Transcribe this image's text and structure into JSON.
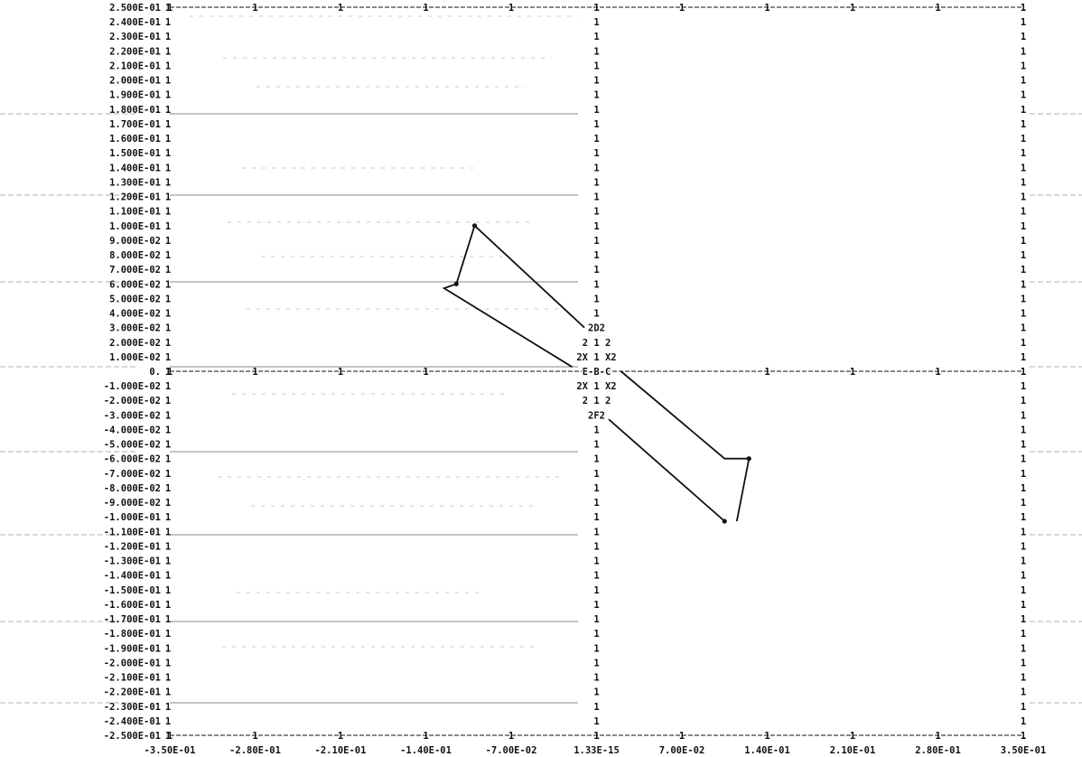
{
  "chart_data": {
    "type": "line",
    "title": "",
    "xlabel": "",
    "ylabel": "",
    "xlim": [
      -0.35,
      0.35
    ],
    "ylim": [
      -0.25,
      0.25
    ],
    "grid": false,
    "x_tick_labels": [
      "-3.50E-01",
      "-2.80E-01",
      "-2.10E-01",
      "-1.40E-01",
      "-7.00E-02",
      "1.33E-15",
      "7.00E-02",
      "1.40E-01",
      "2.10E-01",
      "2.80E-01",
      "3.50E-01"
    ],
    "y_tick_labels": [
      "2.500E-01",
      "2.400E-01",
      "2.300E-01",
      "2.200E-01",
      "2.100E-01",
      "2.000E-01",
      "1.900E-01",
      "1.800E-01",
      "1.700E-01",
      "1.600E-01",
      "1.500E-01",
      "1.400E-01",
      "1.300E-01",
      "1.200E-01",
      "1.100E-01",
      "1.000E-01",
      "9.000E-02",
      "8.000E-02",
      "7.000E-02",
      "6.000E-02",
      "5.000E-02",
      "4.000E-02",
      "3.000E-02",
      "2.000E-02",
      "1.000E-02",
      "0.",
      "-1.000E-02",
      "-2.000E-02",
      "-3.000E-02",
      "-4.000E-02",
      "-5.000E-02",
      "-6.000E-02",
      "-7.000E-02",
      "-8.000E-02",
      "-9.000E-02",
      "-1.000E-01",
      "-1.100E-01",
      "-1.200E-01",
      "-1.300E-01",
      "-1.400E-01",
      "-1.500E-01",
      "-1.600E-01",
      "-1.700E-01",
      "-1.800E-01",
      "-1.900E-01",
      "-2.000E-01",
      "-2.100E-01",
      "-2.200E-01",
      "-2.300E-01",
      "-2.400E-01",
      "-2.500E-01"
    ],
    "frame_char": "1",
    "series": [
      {
        "x": [
          -0.1,
          -0.115,
          -0.125,
          -0.02
        ],
        "y": [
          0.1,
          0.06,
          0.057,
          0.003
        ]
      },
      {
        "x": [
          -0.1,
          -0.01
        ],
        "y": [
          0.1,
          0.03
        ]
      },
      {
        "x": [
          0.115,
          0.125,
          0.105,
          0.02
        ],
        "y": [
          -0.103,
          -0.06,
          -0.06,
          0.0
        ]
      },
      {
        "x": [
          0.105,
          0.01
        ],
        "y": [
          -0.103,
          -0.033
        ]
      }
    ],
    "markers": [
      {
        "x": -0.1,
        "y": 0.1
      },
      {
        "x": -0.115,
        "y": 0.06
      },
      {
        "x": 0.125,
        "y": -0.06
      },
      {
        "x": 0.105,
        "y": -0.103
      }
    ],
    "char_rows": [
      {
        "y": 0.03,
        "text": "2D2"
      },
      {
        "y": 0.02,
        "text": "2 1 2"
      },
      {
        "y": 0.01,
        "text": "2X 1 X2"
      },
      {
        "y": 0.0,
        "text": "E-B-C"
      },
      {
        "y": -0.01,
        "text": "2X 1 X2"
      },
      {
        "y": -0.02,
        "text": "2 1 2"
      },
      {
        "y": -0.03,
        "text": "2F2"
      }
    ]
  }
}
